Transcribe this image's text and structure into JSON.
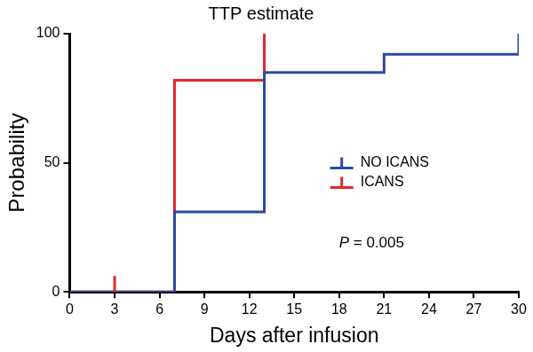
{
  "chart_data": {
    "type": "line",
    "title": "TTP estimate",
    "x_label": "Days after infusion",
    "y_label": "Probability",
    "xlim": [
      0,
      30
    ],
    "xticks": [
      0,
      3,
      6,
      9,
      12,
      15,
      18,
      21,
      24,
      27,
      30
    ],
    "ylim": [
      0,
      100
    ],
    "yticks": [
      0,
      50,
      100
    ],
    "grid": false,
    "legend": "right",
    "line_style": "step",
    "annotation": "P = 0.005",
    "series": [
      {
        "name": "NO ICANS",
        "color": "#2b4aa0",
        "x": [
          0,
          7,
          13,
          21,
          30
        ],
        "values": [
          0,
          31,
          85,
          92,
          100
        ]
      },
      {
        "name": "ICANS",
        "color": "#e3262e",
        "x": [
          0,
          7,
          13
        ],
        "values": [
          0,
          82,
          100
        ],
        "censored": [
          {
            "x": 3,
            "y": 0
          }
        ]
      }
    ]
  }
}
